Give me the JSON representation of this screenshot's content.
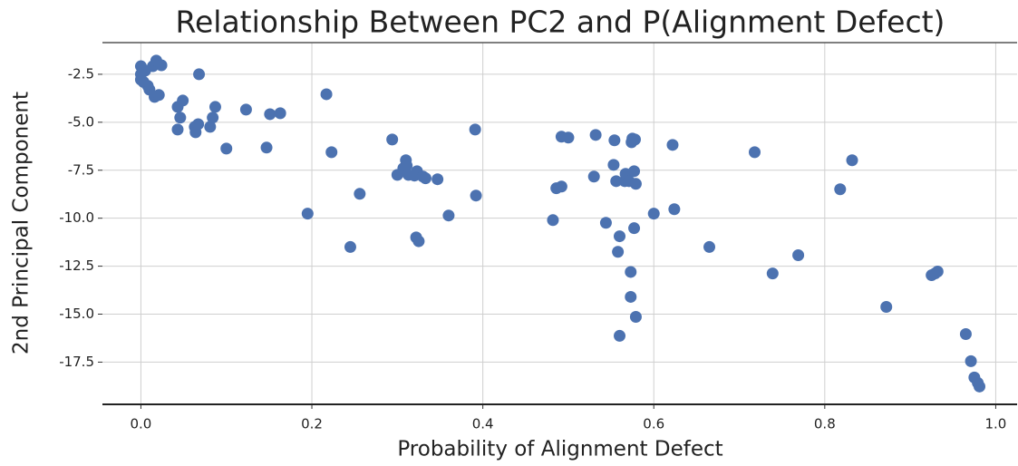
{
  "chart_data": {
    "type": "scatter",
    "title": "Relationship Between PC2 and P(Alignment Defect)",
    "x_label": "Probability of Alignment Defect",
    "y_label": "2nd Principal Component",
    "color": "#4c72b0",
    "grid": true,
    "xlim": [
      -0.045,
      1.025
    ],
    "ylim": [
      -19.7,
      -0.85
    ],
    "xticks": [
      {
        "value": 0,
        "label": "0.0"
      },
      0.2,
      0.4,
      0.6,
      0.8,
      {
        "value": 1,
        "label": "1.0"
      }
    ],
    "yticks": [
      -2.5,
      {
        "value": -5,
        "label": "-5.0"
      },
      -7.5,
      {
        "value": -10,
        "label": "-10.0"
      },
      -12.5,
      {
        "value": -15,
        "label": "-15.0"
      },
      -17.5
    ],
    "x": [
      0.0,
      0.0,
      0.005,
      0.008,
      0.014,
      0.018,
      0.024,
      0.016,
      0.021,
      0.068,
      0.043,
      0.049,
      0.046,
      0.043,
      0.063,
      0.064,
      0.067,
      0.081,
      0.084,
      0.087,
      0.1,
      0.123,
      0.147,
      0.151,
      0.163,
      0.195,
      0.217,
      0.223,
      0.245,
      0.256,
      0.294,
      0.3,
      0.307,
      0.31,
      0.311,
      0.313,
      0.32,
      0.323,
      0.33,
      0.333,
      0.322,
      0.325,
      0.347,
      0.36,
      0.391,
      0.392,
      0.482,
      0.486,
      0.492,
      0.492,
      0.5,
      0.532,
      0.53,
      0.544,
      0.554,
      0.553,
      0.556,
      0.558,
      0.56,
      0.56,
      0.566,
      0.567,
      0.571,
      0.574,
      0.575,
      0.578,
      0.573,
      0.573,
      0.577,
      0.577,
      0.579,
      0.579,
      0.6,
      0.622,
      0.624,
      0.665,
      0.718,
      0.739,
      0.769,
      0.818,
      0.832,
      0.872,
      0.925,
      0.932,
      0.929,
      0.965,
      0.971,
      0.975,
      0.979,
      0.981,
      0.0,
      0.003,
      0.01
    ],
    "values": [
      -2.08,
      -2.78,
      -2.31,
      -3.1,
      -2.08,
      -1.79,
      -2.03,
      -3.68,
      -3.58,
      -2.5,
      -4.2,
      -3.87,
      -4.76,
      -5.38,
      -5.24,
      -5.52,
      -5.1,
      -5.24,
      -4.76,
      -4.2,
      -6.37,
      -4.34,
      -6.32,
      -4.58,
      -4.53,
      -9.76,
      -3.54,
      -6.56,
      -11.5,
      -8.73,
      -5.9,
      -7.74,
      -7.4,
      -6.98,
      -7.26,
      -7.74,
      -7.78,
      -7.55,
      -7.83,
      -7.92,
      -11.0,
      -11.2,
      -7.97,
      -9.86,
      -5.38,
      -8.82,
      -10.1,
      -8.44,
      -8.35,
      -5.75,
      -5.8,
      -5.66,
      -7.83,
      -10.24,
      -5.94,
      -7.22,
      -8.07,
      -11.75,
      -10.94,
      -16.13,
      -8.07,
      -7.69,
      -8.07,
      -6.04,
      -5.85,
      -5.9,
      -12.8,
      -14.1,
      -10.52,
      -7.55,
      -8.21,
      -15.14,
      -9.76,
      -6.18,
      -9.53,
      -11.5,
      -6.56,
      -12.88,
      -11.93,
      -8.49,
      -6.98,
      -14.62,
      -12.97,
      -12.78,
      -12.88,
      -16.04,
      -17.45,
      -18.3,
      -18.58,
      -18.77,
      -2.5,
      -2.9,
      -3.3
    ]
  }
}
